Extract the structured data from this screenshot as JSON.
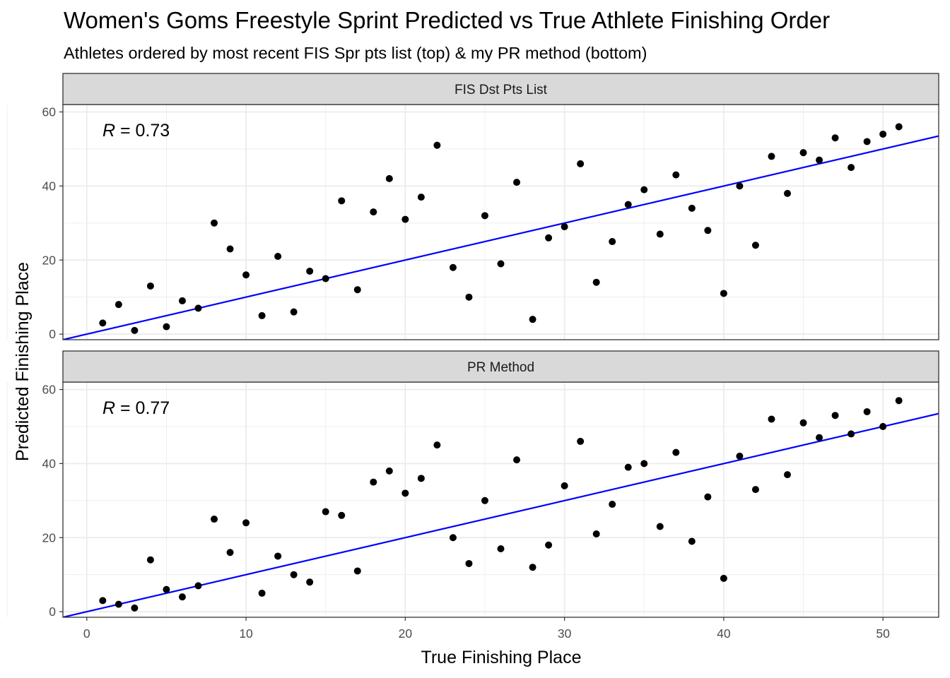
{
  "chart_data": {
    "type": "scatter",
    "title": "Women's Goms Freestyle Sprint Predicted vs True Athlete Finishing Order",
    "subtitle": "Athletes ordered by most recent FIS Spr pts list (top) & my PR method (bottom)",
    "xlabel": "True Finishing Place",
    "ylabel": "Predicted Finishing Place",
    "xlim": [
      -1.5,
      53.5
    ],
    "ylim": [
      -1.5,
      62
    ],
    "x_ticks": [
      "0",
      "10",
      "20",
      "30",
      "40",
      "50"
    ],
    "y_ticks": [
      "0",
      "20",
      "40",
      "60"
    ],
    "grid": true,
    "colors": {
      "points": "#000000",
      "fit_line": "#0000ff",
      "strip_fill": "#d9d9d9",
      "grid": "#ebebeb"
    },
    "panels": [
      {
        "strip": "FIS Dst Pts List",
        "r_label": "R",
        "r_value": "= 0.73",
        "fit": {
          "intercept": 0.0,
          "slope": 1.0
        },
        "points": [
          [
            1,
            3
          ],
          [
            2,
            8
          ],
          [
            3,
            1
          ],
          [
            4,
            13
          ],
          [
            5,
            2
          ],
          [
            6,
            9
          ],
          [
            7,
            7
          ],
          [
            8,
            30
          ],
          [
            9,
            23
          ],
          [
            10,
            16
          ],
          [
            11,
            5
          ],
          [
            12,
            21
          ],
          [
            13,
            6
          ],
          [
            14,
            17
          ],
          [
            15,
            15
          ],
          [
            16,
            36
          ],
          [
            17,
            12
          ],
          [
            18,
            33
          ],
          [
            19,
            42
          ],
          [
            20,
            31
          ],
          [
            21,
            37
          ],
          [
            22,
            51
          ],
          [
            23,
            18
          ],
          [
            24,
            10
          ],
          [
            25,
            32
          ],
          [
            26,
            19
          ],
          [
            27,
            41
          ],
          [
            28,
            4
          ],
          [
            29,
            26
          ],
          [
            30,
            29
          ],
          [
            31,
            46
          ],
          [
            32,
            14
          ],
          [
            33,
            25
          ],
          [
            34,
            35
          ],
          [
            35,
            39
          ],
          [
            36,
            27
          ],
          [
            37,
            43
          ],
          [
            38,
            34
          ],
          [
            39,
            28
          ],
          [
            40,
            11
          ],
          [
            41,
            40
          ],
          [
            42,
            24
          ],
          [
            43,
            48
          ],
          [
            44,
            38
          ],
          [
            45,
            49
          ],
          [
            46,
            47
          ],
          [
            47,
            53
          ],
          [
            48,
            45
          ],
          [
            49,
            52
          ],
          [
            50,
            54
          ],
          [
            51,
            56
          ]
        ]
      },
      {
        "strip": "PR Method",
        "r_label": "R",
        "r_value": "= 0.77",
        "fit": {
          "intercept": 0.0,
          "slope": 1.0
        },
        "points": [
          [
            1,
            3
          ],
          [
            2,
            2
          ],
          [
            3,
            1
          ],
          [
            4,
            14
          ],
          [
            5,
            6
          ],
          [
            6,
            4
          ],
          [
            7,
            7
          ],
          [
            8,
            25
          ],
          [
            9,
            16
          ],
          [
            10,
            24
          ],
          [
            11,
            5
          ],
          [
            12,
            15
          ],
          [
            13,
            10
          ],
          [
            14,
            8
          ],
          [
            15,
            27
          ],
          [
            16,
            26
          ],
          [
            17,
            11
          ],
          [
            18,
            35
          ],
          [
            19,
            38
          ],
          [
            20,
            32
          ],
          [
            21,
            36
          ],
          [
            22,
            45
          ],
          [
            23,
            20
          ],
          [
            24,
            13
          ],
          [
            25,
            30
          ],
          [
            26,
            17
          ],
          [
            27,
            41
          ],
          [
            28,
            12
          ],
          [
            29,
            18
          ],
          [
            30,
            34
          ],
          [
            31,
            46
          ],
          [
            32,
            21
          ],
          [
            33,
            29
          ],
          [
            34,
            39
          ],
          [
            35,
            40
          ],
          [
            36,
            23
          ],
          [
            37,
            43
          ],
          [
            38,
            19
          ],
          [
            39,
            31
          ],
          [
            40,
            9
          ],
          [
            41,
            42
          ],
          [
            42,
            33
          ],
          [
            43,
            52
          ],
          [
            44,
            37
          ],
          [
            45,
            51
          ],
          [
            46,
            47
          ],
          [
            47,
            53
          ],
          [
            48,
            48
          ],
          [
            49,
            54
          ],
          [
            50,
            50
          ],
          [
            51,
            57
          ]
        ]
      }
    ]
  }
}
